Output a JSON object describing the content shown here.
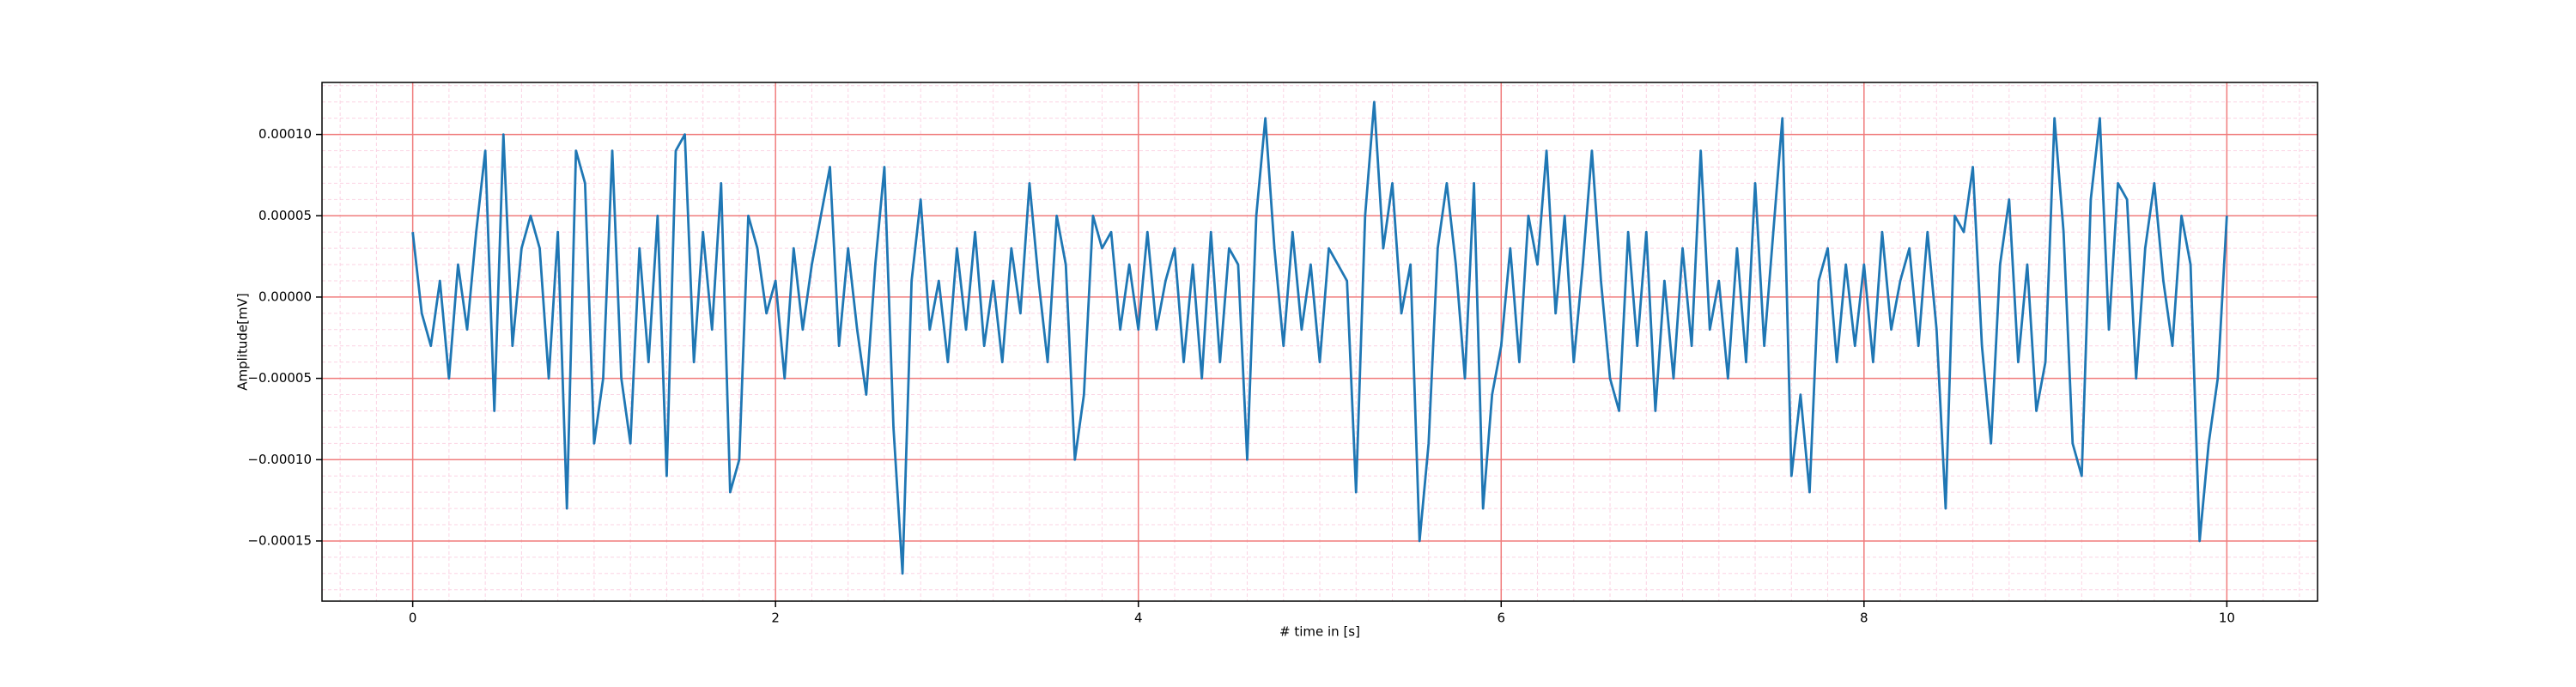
{
  "chart_data": {
    "type": "line",
    "xlabel": "# time in [s]",
    "ylabel": "Amplitude[mV]",
    "xlim": [
      -0.5,
      10.5
    ],
    "ylim": [
      -0.000187,
      0.000132
    ],
    "xticks": [
      0,
      2,
      4,
      6,
      8,
      10
    ],
    "yticks": [
      {
        "value": -0.00015,
        "label": "−0.00015"
      },
      {
        "value": -0.0001,
        "label": "−0.00010"
      },
      {
        "value": -5e-05,
        "label": "−0.00005"
      },
      {
        "value": 0,
        "label": "0.00000"
      },
      {
        "value": 5e-05,
        "label": "0.00005"
      },
      {
        "value": 0.0001,
        "label": "0.00010"
      }
    ],
    "grid": true,
    "minor_grid": true,
    "grid_color": "#f07c7c",
    "minor_grid_color": "#fbd3e3",
    "series": [
      {
        "color": "#1f77b4",
        "x": [
          0,
          0.05,
          0.1,
          0.15,
          0.2,
          0.25,
          0.3,
          0.35,
          0.4,
          0.45,
          0.5,
          0.55,
          0.6,
          0.65,
          0.7,
          0.75,
          0.8,
          0.85,
          0.9,
          0.95,
          1,
          1.05,
          1.1,
          1.15,
          1.2,
          1.25,
          1.3,
          1.35,
          1.4,
          1.45,
          1.5,
          1.55,
          1.6,
          1.65,
          1.7,
          1.75,
          1.8,
          1.85,
          1.9,
          1.95,
          2,
          2.05,
          2.1,
          2.15,
          2.2,
          2.25,
          2.3,
          2.35,
          2.4,
          2.45,
          2.5,
          2.55,
          2.6,
          2.65,
          2.7,
          2.75,
          2.8,
          2.85,
          2.9,
          2.95,
          3,
          3.05,
          3.1,
          3.15,
          3.2,
          3.25,
          3.3,
          3.35,
          3.4,
          3.45,
          3.5,
          3.55,
          3.6,
          3.65,
          3.7,
          3.75,
          3.8,
          3.85,
          3.9,
          3.95,
          4,
          4.05,
          4.1,
          4.15,
          4.2,
          4.25,
          4.3,
          4.35,
          4.4,
          4.45,
          4.5,
          4.55,
          4.6,
          4.65,
          4.7,
          4.75,
          4.8,
          4.85,
          4.9,
          4.95,
          5,
          5.05,
          5.1,
          5.15,
          5.2,
          5.25,
          5.3,
          5.35,
          5.4,
          5.45,
          5.5,
          5.55,
          5.6,
          5.65,
          5.7,
          5.75,
          5.8,
          5.85,
          5.9,
          5.95,
          6,
          6.05,
          6.1,
          6.15,
          6.2,
          6.25,
          6.3,
          6.35,
          6.4,
          6.45,
          6.5,
          6.55,
          6.6,
          6.65,
          6.7,
          6.75,
          6.8,
          6.85,
          6.9,
          6.95,
          7,
          7.05,
          7.1,
          7.15,
          7.2,
          7.25,
          7.3,
          7.35,
          7.4,
          7.45,
          7.5,
          7.55,
          7.6,
          7.65,
          7.7,
          7.75,
          7.8,
          7.85,
          7.9,
          7.95,
          8,
          8.05,
          8.1,
          8.15,
          8.2,
          8.25,
          8.3,
          8.35,
          8.4,
          8.45,
          8.5,
          8.55,
          8.6,
          8.65,
          8.7,
          8.75,
          8.8,
          8.85,
          8.9,
          8.95,
          9,
          9.05,
          9.1,
          9.15,
          9.2,
          9.25,
          9.3,
          9.35,
          9.4,
          9.45,
          9.5,
          9.55,
          9.6,
          9.65,
          9.7,
          9.75,
          9.8,
          9.85,
          9.9,
          9.95,
          10
        ],
        "values": [
          4e-05,
          -1e-05,
          -3e-05,
          1e-05,
          -5e-05,
          2e-05,
          -2e-05,
          4e-05,
          9e-05,
          -7e-05,
          0.0001,
          -3e-05,
          3e-05,
          5e-05,
          3e-05,
          -5e-05,
          4e-05,
          -0.00013,
          9e-05,
          7e-05,
          -9e-05,
          -5e-05,
          9e-05,
          -5e-05,
          -9e-05,
          3e-05,
          -4e-05,
          5e-05,
          -0.00011,
          9e-05,
          0.0001,
          -4e-05,
          4e-05,
          -2e-05,
          7e-05,
          -0.00012,
          -0.0001,
          5e-05,
          3e-05,
          -1e-05,
          1e-05,
          -5e-05,
          3e-05,
          -2e-05,
          2e-05,
          5e-05,
          8e-05,
          -3e-05,
          3e-05,
          -2e-05,
          -6e-05,
          2e-05,
          8e-05,
          -8e-05,
          -0.00017,
          1e-05,
          6e-05,
          -2e-05,
          1e-05,
          -4e-05,
          3e-05,
          -2e-05,
          4e-05,
          -3e-05,
          1e-05,
          -4e-05,
          3e-05,
          -1e-05,
          7e-05,
          1e-05,
          -4e-05,
          5e-05,
          2e-05,
          -0.0001,
          -6e-05,
          5e-05,
          3e-05,
          4e-05,
          -2e-05,
          2e-05,
          -2e-05,
          4e-05,
          -2e-05,
          1e-05,
          3e-05,
          -4e-05,
          2e-05,
          -5e-05,
          4e-05,
          -4e-05,
          3e-05,
          2e-05,
          -0.0001,
          5e-05,
          0.00011,
          3e-05,
          -3e-05,
          4e-05,
          -2e-05,
          2e-05,
          -4e-05,
          3e-05,
          2e-05,
          1e-05,
          -0.00012,
          5e-05,
          0.00012,
          3e-05,
          7e-05,
          -1e-05,
          2e-05,
          -0.00015,
          -9e-05,
          3e-05,
          7e-05,
          2e-05,
          -5e-05,
          7e-05,
          -0.00013,
          -6e-05,
          -3e-05,
          3e-05,
          -4e-05,
          5e-05,
          2e-05,
          9e-05,
          -1e-05,
          5e-05,
          -4e-05,
          2e-05,
          9e-05,
          1e-05,
          -5e-05,
          -7e-05,
          4e-05,
          -3e-05,
          4e-05,
          -7e-05,
          1e-05,
          -5e-05,
          3e-05,
          -3e-05,
          9e-05,
          -2e-05,
          1e-05,
          -5e-05,
          3e-05,
          -4e-05,
          7e-05,
          -3e-05,
          4e-05,
          0.00011,
          -0.00011,
          -6e-05,
          -0.00012,
          1e-05,
          3e-05,
          -4e-05,
          2e-05,
          -3e-05,
          2e-05,
          -4e-05,
          4e-05,
          -2e-05,
          1e-05,
          3e-05,
          -3e-05,
          4e-05,
          -2e-05,
          -0.00013,
          5e-05,
          4e-05,
          8e-05,
          -3e-05,
          -9e-05,
          2e-05,
          6e-05,
          -4e-05,
          2e-05,
          -7e-05,
          -4e-05,
          0.00011,
          4e-05,
          -9e-05,
          -0.00011,
          6e-05,
          0.00011,
          -2e-05,
          7e-05,
          6e-05,
          -5e-05,
          3e-05,
          7e-05,
          1e-05,
          -3e-05,
          5e-05,
          2e-05,
          -0.00015,
          -9e-05,
          -5e-05,
          5e-05
        ]
      }
    ]
  }
}
